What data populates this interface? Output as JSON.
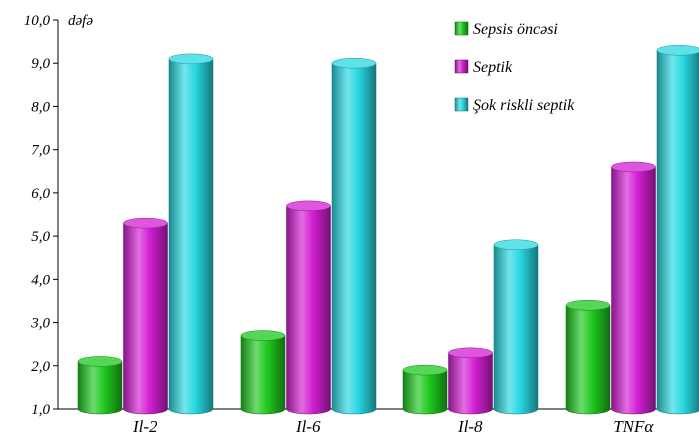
{
  "chart_data": {
    "type": "bar",
    "unit_label": "dəfə",
    "categories": [
      "Il-2",
      "Il-6",
      "Il-8",
      "TNFα"
    ],
    "series": [
      {
        "name": "Sepsis öncəsi",
        "values": [
          2.1,
          2.7,
          1.9,
          3.4
        ],
        "color": "#1ec81e"
      },
      {
        "name": "Septik",
        "values": [
          5.3,
          5.7,
          2.3,
          6.6
        ],
        "color": "#d21ed2"
      },
      {
        "name": "Şok riskli septik",
        "values": [
          9.1,
          9.0,
          4.8,
          9.3
        ],
        "color": "#28d7e1"
      }
    ],
    "ylim": [
      1.0,
      10.0
    ],
    "yticks": [
      "1,0",
      "2,0",
      "3,0",
      "4,0",
      "5,0",
      "6,0",
      "7,0",
      "8,0",
      "9,0",
      "10,0"
    ],
    "grid": false,
    "legend_position": "top-right",
    "bar_style": "3d-cylinder"
  }
}
